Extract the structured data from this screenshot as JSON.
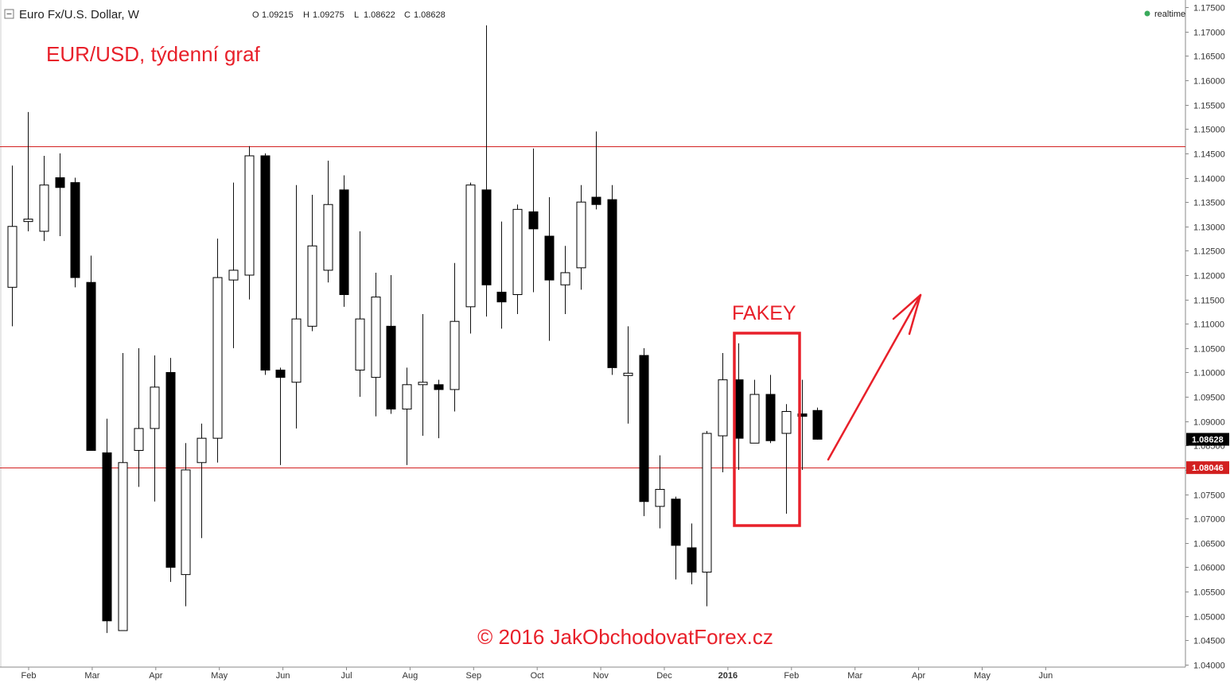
{
  "header": {
    "symbol_title": "Euro Fx/U.S. Dollar, W",
    "ohlc": [
      {
        "key": "O",
        "value": "1.09215"
      },
      {
        "key": "H",
        "value": "1.09275"
      },
      {
        "key": "L",
        "value": "1.08622"
      },
      {
        "key": "C",
        "value": "1.08628"
      }
    ],
    "status": "realtime",
    "status_color": "#3aaa5c"
  },
  "chart_data": {
    "type": "candlestick",
    "title": "EUR/USD, týdenní graf",
    "annotation_label": "FAKEY",
    "copyright": "© 2016 JakObchodovatForex.cz",
    "ylim": [
      1.0395,
      1.1765
    ],
    "y_ticks": [
      "1.04000",
      "1.04500",
      "1.05000",
      "1.05500",
      "1.06000",
      "1.06500",
      "1.07000",
      "1.07500",
      "1.08000",
      "1.08500",
      "1.09000",
      "1.09500",
      "1.10000",
      "1.10500",
      "1.11000",
      "1.11500",
      "1.12000",
      "1.12500",
      "1.13000",
      "1.13500",
      "1.14000",
      "1.14500",
      "1.15000",
      "1.15500",
      "1.16000",
      "1.16500",
      "1.17000",
      "1.17500"
    ],
    "x_ticks": [
      {
        "label": "Feb",
        "bold": false
      },
      {
        "label": "Mar",
        "bold": false
      },
      {
        "label": "Apr",
        "bold": false
      },
      {
        "label": "May",
        "bold": false
      },
      {
        "label": "Jun",
        "bold": false
      },
      {
        "label": "Jul",
        "bold": false
      },
      {
        "label": "Aug",
        "bold": false
      },
      {
        "label": "Sep",
        "bold": false
      },
      {
        "label": "Oct",
        "bold": false
      },
      {
        "label": "Nov",
        "bold": false
      },
      {
        "label": "Dec",
        "bold": false
      },
      {
        "label": "2016",
        "bold": true
      },
      {
        "label": "Feb",
        "bold": false
      },
      {
        "label": "Mar",
        "bold": false
      },
      {
        "label": "Apr",
        "bold": false
      },
      {
        "label": "May",
        "bold": false
      },
      {
        "label": "Jun",
        "bold": false
      }
    ],
    "horizontal_lines": [
      {
        "value": 1.1465,
        "label": "",
        "color": "#d22020"
      },
      {
        "value": 1.08046,
        "label": "1.08046",
        "color": "#d22020"
      }
    ],
    "last_price": {
      "value": 1.08628,
      "label": "1.08628"
    },
    "candles": [
      {
        "o": 1.1175,
        "h": 1.1425,
        "l": 1.1095,
        "c": 1.13
      },
      {
        "o": 1.131,
        "h": 1.1535,
        "l": 1.129,
        "c": 1.1315
      },
      {
        "o": 1.129,
        "h": 1.1445,
        "l": 1.127,
        "c": 1.1385
      },
      {
        "o": 1.14,
        "h": 1.145,
        "l": 1.128,
        "c": 1.138
      },
      {
        "o": 1.139,
        "h": 1.14,
        "l": 1.1175,
        "c": 1.1195
      },
      {
        "o": 1.1185,
        "h": 1.124,
        "l": 1.084,
        "c": 1.084
      },
      {
        "o": 1.0835,
        "h": 1.0905,
        "l": 1.0465,
        "c": 1.049
      },
      {
        "o": 1.047,
        "h": 1.104,
        "l": 1.047,
        "c": 1.0815
      },
      {
        "o": 1.084,
        "h": 1.105,
        "l": 1.0765,
        "c": 1.0885
      },
      {
        "o": 1.0885,
        "h": 1.1035,
        "l": 1.0735,
        "c": 1.097
      },
      {
        "o": 1.1,
        "h": 1.103,
        "l": 1.057,
        "c": 1.06
      },
      {
        "o": 1.0585,
        "h": 1.0855,
        "l": 1.052,
        "c": 1.08
      },
      {
        "o": 1.0815,
        "h": 1.0895,
        "l": 1.066,
        "c": 1.0865
      },
      {
        "o": 1.0865,
        "h": 1.1275,
        "l": 1.0815,
        "c": 1.1195
      },
      {
        "o": 1.119,
        "h": 1.139,
        "l": 1.105,
        "c": 1.121
      },
      {
        "o": 1.12,
        "h": 1.1465,
        "l": 1.115,
        "c": 1.1445
      },
      {
        "o": 1.1445,
        "h": 1.145,
        "l": 1.0995,
        "c": 1.1005
      },
      {
        "o": 1.1005,
        "h": 1.101,
        "l": 1.081,
        "c": 1.099
      },
      {
        "o": 1.098,
        "h": 1.1385,
        "l": 1.0885,
        "c": 1.111
      },
      {
        "o": 1.1095,
        "h": 1.1365,
        "l": 1.1085,
        "c": 1.126
      },
      {
        "o": 1.121,
        "h": 1.1435,
        "l": 1.1185,
        "c": 1.1345
      },
      {
        "o": 1.1375,
        "h": 1.1405,
        "l": 1.1135,
        "c": 1.116
      },
      {
        "o": 1.1005,
        "h": 1.129,
        "l": 1.095,
        "c": 1.111
      },
      {
        "o": 1.099,
        "h": 1.1205,
        "l": 1.091,
        "c": 1.1155
      },
      {
        "o": 1.1095,
        "h": 1.12,
        "l": 1.0915,
        "c": 1.0925
      },
      {
        "o": 1.0925,
        "h": 1.101,
        "l": 1.081,
        "c": 1.0975
      },
      {
        "o": 1.0975,
        "h": 1.112,
        "l": 1.087,
        "c": 1.098
      },
      {
        "o": 1.0975,
        "h": 1.0985,
        "l": 1.0865,
        "c": 1.0965
      },
      {
        "o": 1.0965,
        "h": 1.1225,
        "l": 1.092,
        "c": 1.1105
      },
      {
        "o": 1.1135,
        "h": 1.139,
        "l": 1.108,
        "c": 1.1385
      },
      {
        "o": 1.1375,
        "h": 1.1713,
        "l": 1.1115,
        "c": 1.118
      },
      {
        "o": 1.1165,
        "h": 1.131,
        "l": 1.109,
        "c": 1.1145
      },
      {
        "o": 1.116,
        "h": 1.1345,
        "l": 1.112,
        "c": 1.1335
      },
      {
        "o": 1.133,
        "h": 1.146,
        "l": 1.1165,
        "c": 1.1295
      },
      {
        "o": 1.128,
        "h": 1.136,
        "l": 1.1065,
        "c": 1.119
      },
      {
        "o": 1.118,
        "h": 1.126,
        "l": 1.112,
        "c": 1.1205
      },
      {
        "o": 1.1215,
        "h": 1.1385,
        "l": 1.117,
        "c": 1.135
      },
      {
        "o": 1.136,
        "h": 1.1495,
        "l": 1.1335,
        "c": 1.1345
      },
      {
        "o": 1.1355,
        "h": 1.1385,
        "l": 1.0995,
        "c": 1.101
      },
      {
        "o": 1.0997,
        "h": 1.1095,
        "l": 1.0895,
        "c": 1.0997
      },
      {
        "o": 1.1035,
        "h": 1.105,
        "l": 1.0705,
        "c": 1.0735
      },
      {
        "o": 1.0725,
        "h": 1.083,
        "l": 1.068,
        "c": 1.076
      },
      {
        "o": 1.074,
        "h": 1.0745,
        "l": 1.0575,
        "c": 1.0645
      },
      {
        "o": 1.064,
        "h": 1.069,
        "l": 1.0565,
        "c": 1.059
      },
      {
        "o": 1.059,
        "h": 1.088,
        "l": 1.052,
        "c": 1.0875
      },
      {
        "o": 1.087,
        "h": 1.104,
        "l": 1.0795,
        "c": 1.0985
      },
      {
        "o": 1.0985,
        "h": 1.106,
        "l": 1.08,
        "c": 1.0865
      },
      {
        "o": 1.0855,
        "h": 1.0985,
        "l": 1.0855,
        "c": 1.0955
      },
      {
        "o": 1.0955,
        "h": 1.0995,
        "l": 1.0855,
        "c": 1.086
      },
      {
        "o": 1.0875,
        "h": 1.0935,
        "l": 1.071,
        "c": 1.092
      },
      {
        "o": 1.0915,
        "h": 1.0985,
        "l": 1.08,
        "c": 1.091
      },
      {
        "o": 1.0922,
        "h": 1.0928,
        "l": 1.0862,
        "c": 1.0863
      }
    ]
  }
}
